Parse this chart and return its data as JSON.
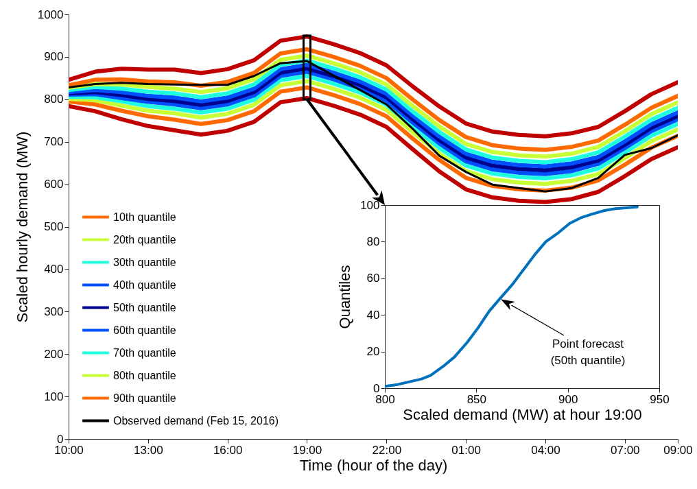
{
  "chart_data": [
    {
      "type": "line",
      "xlabel": "Time (hour of the day)",
      "ylabel": "Scaled hourly demand (MW)",
      "legend": "bottom left",
      "x": [
        "2016-02-15T10:00",
        "2016-02-15T11:00",
        "2016-02-15T12:00",
        "2016-02-15T13:00",
        "2016-02-15T14:00",
        "2016-02-15T15:00",
        "2016-02-15T16:00",
        "2016-02-15T17:00",
        "2016-02-15T18:00",
        "2016-02-15T19:00",
        "2016-02-15T20:00",
        "2016-02-15T21:00",
        "2016-02-15T22:00",
        "2016-02-15T23:00",
        "2016-02-16T00:00",
        "2016-02-16T01:00",
        "2016-02-16T02:00",
        "2016-02-16T03:00",
        "2016-02-16T04:00",
        "2016-02-16T05:00",
        "2016-02-16T06:00",
        "2016-02-16T07:00",
        "2016-02-16T08:00",
        "2016-02-16T09:00"
      ],
      "xlim": [
        "2016-02-15T10:00",
        "2016-02-16T09:00"
      ],
      "xticks": [
        {
          "value": "2016-02-15T10:00",
          "label": "10:00"
        },
        {
          "value": "2016-02-15T13:00",
          "label": "13:00"
        },
        {
          "value": "2016-02-15T16:00",
          "label": "16:00"
        },
        {
          "value": "2016-02-15T19:00",
          "label": "19:00"
        },
        {
          "value": "2016-02-15T22:00",
          "label": "22:00"
        },
        {
          "value": "2016-02-16T01:00",
          "label": "01:00"
        },
        {
          "value": "2016-02-16T04:00",
          "label": "04:00"
        },
        {
          "value": "2016-02-16T07:00",
          "label": "07:00"
        },
        {
          "value": "2016-02-16T09:00",
          "label": "09:00"
        }
      ],
      "ylim": [
        0,
        1000
      ],
      "yticks": [
        0,
        100,
        200,
        300,
        400,
        500,
        600,
        700,
        800,
        900,
        1000
      ],
      "series": [
        {
          "color": "#c00000",
          "values": [
            784,
            772,
            753,
            737,
            727,
            717,
            726,
            747,
            793,
            803,
            785,
            764,
            735,
            682,
            630,
            588,
            569,
            561,
            558,
            565,
            582,
            619,
            659,
            687
          ]
        },
        {
          "color": "#c00000",
          "values": [
            846,
            865,
            872,
            870,
            870,
            862,
            871,
            892,
            938,
            948,
            930,
            909,
            880,
            830,
            783,
            743,
            724,
            716,
            713,
            720,
            735,
            772,
            812,
            840
          ]
        },
        {
          "name": "10th quantile",
          "color": "#ff6a00",
          "values": [
            795,
            788,
            773,
            760,
            752,
            742,
            751,
            772,
            818,
            828,
            810,
            789,
            760,
            707,
            657,
            615,
            596,
            588,
            585,
            592,
            609,
            646,
            686,
            714
          ]
        },
        {
          "name": "20th quantile",
          "color": "#c8ff37",
          "values": [
            801,
            798,
            785,
            773,
            767,
            757,
            766,
            787,
            833,
            843,
            825,
            804,
            775,
            722,
            672,
            631,
            612,
            604,
            601,
            608,
            624,
            661,
            701,
            729
          ]
        },
        {
          "name": "30th quantile",
          "color": "#1fffe0",
          "values": [
            806,
            805,
            795,
            784,
            778,
            769,
            778,
            799,
            845,
            855,
            837,
            816,
            787,
            735,
            685,
            644,
            625,
            617,
            614,
            621,
            637,
            674,
            714,
            742
          ]
        },
        {
          "name": "40th quantile",
          "color": "#0050ff",
          "values": [
            811,
            812,
            803,
            794,
            788,
            779,
            788,
            809,
            855,
            865,
            847,
            826,
            797,
            745,
            696,
            654,
            635,
            627,
            624,
            631,
            648,
            685,
            725,
            753
          ]
        },
        {
          "name": "50th quantile",
          "color": "#00008f",
          "values": [
            814,
            817,
            810,
            801,
            796,
            787,
            796,
            817,
            863,
            873,
            855,
            834,
            805,
            753,
            704,
            663,
            644,
            636,
            633,
            640,
            656,
            693,
            733,
            761
          ]
        },
        {
          "name": "60th quantile",
          "color": "#0050ff",
          "values": [
            817,
            822,
            817,
            808,
            804,
            795,
            804,
            825,
            871,
            881,
            863,
            842,
            813,
            761,
            712,
            672,
            653,
            645,
            642,
            649,
            664,
            701,
            741,
            769
          ]
        },
        {
          "name": "70th quantile",
          "color": "#1fffe0",
          "values": [
            822,
            829,
            825,
            818,
            814,
            805,
            814,
            835,
            881,
            891,
            873,
            852,
            823,
            771,
            723,
            682,
            663,
            655,
            652,
            659,
            675,
            712,
            752,
            780
          ]
        },
        {
          "name": "80th quantile",
          "color": "#c8ff37",
          "values": [
            827,
            836,
            835,
            829,
            825,
            817,
            826,
            847,
            893,
            903,
            885,
            864,
            835,
            784,
            736,
            695,
            676,
            668,
            665,
            672,
            688,
            725,
            765,
            793
          ]
        },
        {
          "name": "90th quantile",
          "color": "#ff6a00",
          "values": [
            833,
            846,
            847,
            842,
            840,
            832,
            841,
            862,
            908,
            918,
            900,
            879,
            850,
            799,
            751,
            711,
            692,
            684,
            681,
            688,
            703,
            740,
            780,
            808
          ]
        },
        {
          "name": "Observed demand (Feb 15, 2016)",
          "color": "#000000",
          "values": [
            828,
            836,
            839,
            836,
            835,
            834,
            834,
            855,
            885,
            890,
            856,
            822,
            788,
            730,
            667,
            629,
            599,
            591,
            583,
            591,
            615,
            669,
            685,
            715
          ]
        }
      ]
    },
    {
      "type": "line",
      "xlabel": "Scaled demand (MW) at hour 19:00",
      "ylabel": "Quantiles",
      "x": [
        800,
        807,
        820,
        825,
        832,
        838,
        845,
        851,
        857,
        863,
        870,
        876,
        882,
        888,
        895,
        901,
        907,
        913,
        920,
        926,
        938
      ],
      "xlim": [
        800,
        950
      ],
      "xticks": [
        800,
        850,
        900,
        950
      ],
      "ylim": [
        0,
        100
      ],
      "yticks": [
        0,
        20,
        40,
        60,
        80,
        100
      ],
      "series": [
        {
          "color": "#0072bd",
          "values": [
            1,
            2,
            5,
            7,
            12,
            17,
            25,
            33,
            42,
            49,
            57,
            65,
            73,
            80,
            85,
            90,
            93,
            95,
            97,
            98,
            99
          ]
        }
      ],
      "annotations": [
        "Point forecast\n(50th quantile)"
      ]
    }
  ]
}
